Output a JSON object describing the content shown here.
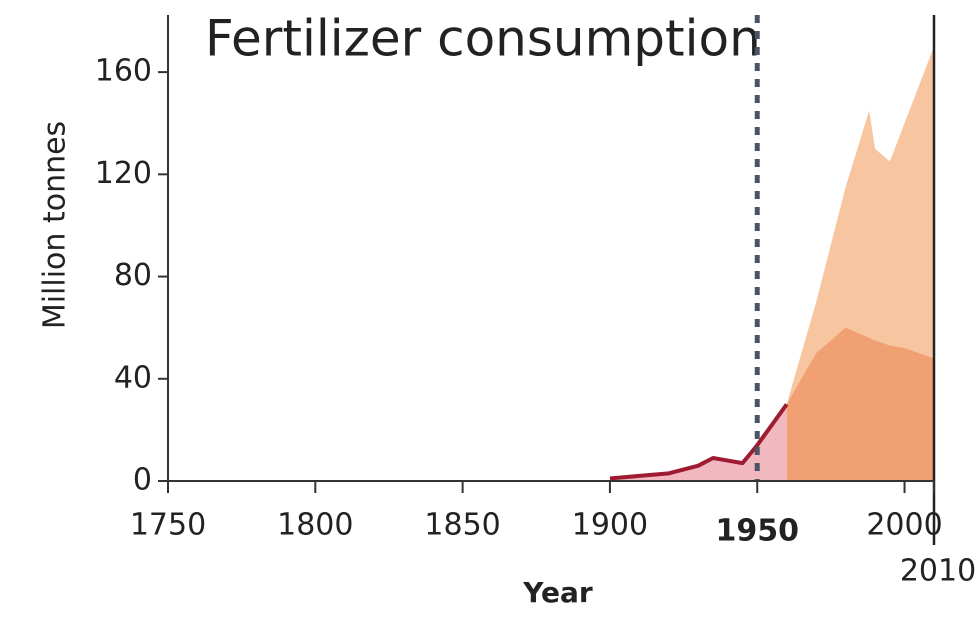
{
  "chart_data": {
    "type": "area",
    "title": "Fertilizer consumption",
    "ylabel": "Million tonnes",
    "xlabel": "Year",
    "x": [
      1900,
      1910,
      1920,
      1930,
      1935,
      1940,
      1945,
      1950,
      1955,
      1960,
      1970,
      1980,
      1988,
      1990,
      1995,
      2000,
      2005,
      2010
    ],
    "series": [
      {
        "color": "#f7c59f",
        "values": [
          null,
          null,
          null,
          null,
          null,
          null,
          null,
          null,
          null,
          30,
          70,
          115,
          145,
          130,
          125,
          140,
          155,
          170
        ]
      },
      {
        "color": "#f0a072",
        "values": [
          null,
          null,
          null,
          null,
          null,
          null,
          null,
          null,
          null,
          30,
          50,
          60,
          56,
          55,
          53,
          52,
          50,
          48
        ]
      },
      {
        "color": "#9e1b32",
        "fill": "#f2b8c0",
        "values": [
          1,
          2,
          3,
          6,
          9,
          8,
          7,
          14,
          22,
          30,
          null,
          null,
          null,
          null,
          null,
          null,
          null,
          null
        ]
      }
    ],
    "xlim": [
      1750,
      2010
    ],
    "ylim": [
      0,
      180
    ],
    "xticks": [
      1750,
      1800,
      1850,
      1900,
      1950,
      2000,
      2010
    ],
    "yticks": [
      0,
      40,
      80,
      120,
      160
    ],
    "reference_lines": [
      {
        "x": 1950,
        "style": "dashed"
      },
      {
        "x": 2010,
        "style": "solid"
      }
    ]
  }
}
